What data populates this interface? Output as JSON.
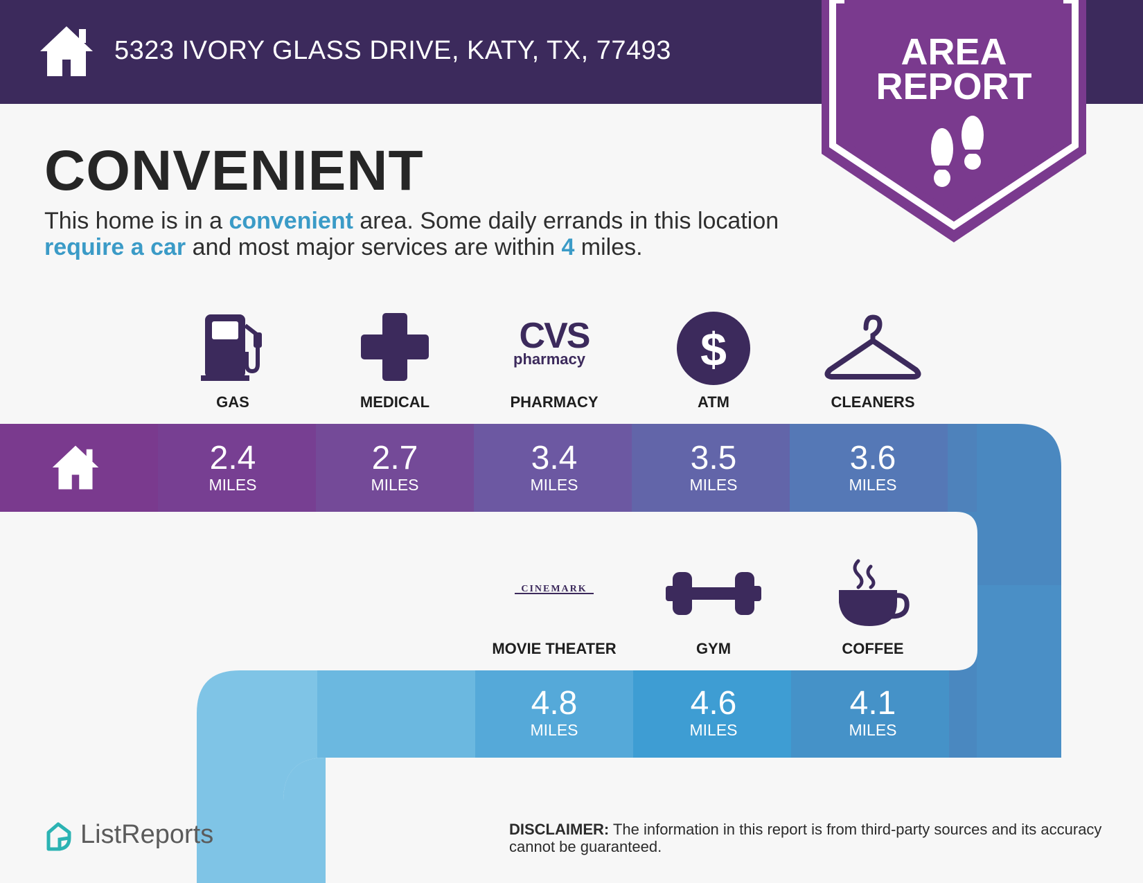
{
  "header": {
    "address": "5323 IVORY GLASS DRIVE, KATY, TX, 77493",
    "background": "#3c2a5c"
  },
  "badge": {
    "line1": "AREA",
    "line2": "REPORT",
    "color": "#7a3a8e"
  },
  "main": {
    "heading": "CONVENIENT",
    "summary": {
      "p1": "This home is in a ",
      "h1": "convenient",
      "p2": " area. Some daily errands in this location ",
      "h2": "require a car",
      "p3": " and most major services are within ",
      "h3": "4",
      "p4": " miles."
    }
  },
  "amenities_row1": [
    {
      "label": "GAS",
      "icon": "gas-pump-icon",
      "distance": "2.4",
      "unit": "MILES"
    },
    {
      "label": "MEDICAL",
      "icon": "medical-cross-icon",
      "distance": "2.7",
      "unit": "MILES"
    },
    {
      "label": "PHARMACY",
      "icon": "cvs-pharmacy-logo",
      "distance": "3.4",
      "unit": "MILES"
    },
    {
      "label": "ATM",
      "icon": "dollar-icon",
      "distance": "3.5",
      "unit": "MILES"
    },
    {
      "label": "CLEANERS",
      "icon": "hanger-icon",
      "distance": "3.6",
      "unit": "MILES"
    }
  ],
  "amenities_row2": [
    {
      "label": "MOVIE THEATER",
      "icon": "cinemark-logo",
      "distance": "4.8",
      "unit": "MILES"
    },
    {
      "label": "GYM",
      "icon": "dumbbell-icon",
      "distance": "4.6",
      "unit": "MILES"
    },
    {
      "label": "COFFEE",
      "icon": "coffee-cup-icon",
      "distance": "4.1",
      "unit": "MILES"
    }
  ],
  "logos": {
    "cvs_main": "CVS",
    "cvs_sub": "pharmacy",
    "cinemark": "CINEMARK"
  },
  "footer": {
    "brand": "ListReports",
    "disclaimer_label": "DISCLAIMER:",
    "disclaimer_text": " The information in this report is from third-party sources and its accuracy cannot be guaranteed."
  },
  "colors": {
    "accent_text": "#3b9bc7",
    "icon": "#3c2a5c",
    "road_purple": "#7a3a8e",
    "road_blue": "#4a8fc4",
    "road_light": "#7fc4e6"
  }
}
